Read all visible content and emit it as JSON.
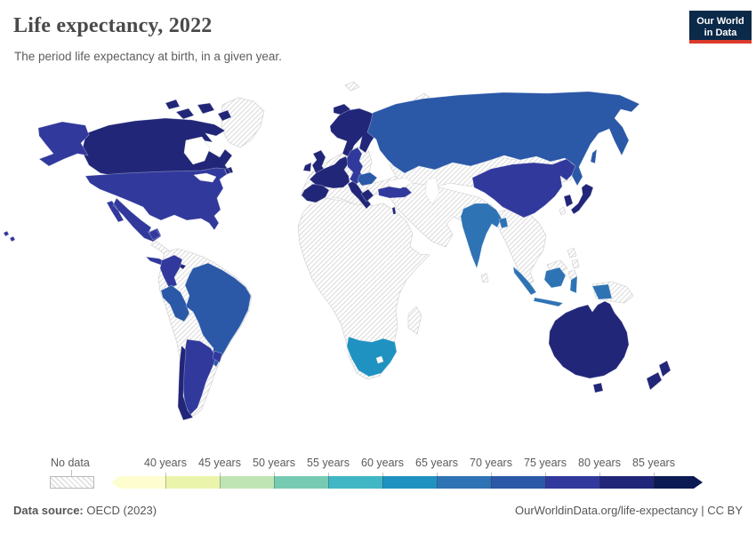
{
  "header": {
    "title": "Life expectancy, 2022",
    "subtitle": "The period life expectancy at birth, in a given year.",
    "logo_line1": "Our World",
    "logo_line2": "in Data",
    "logo_bg": "#0b2948",
    "logo_red": "#dc3a2b"
  },
  "legend": {
    "no_data_label": "No data",
    "tick_labels": [
      "40 years",
      "45 years",
      "50 years",
      "55 years",
      "60 years",
      "65 years",
      "70 years",
      "75 years",
      "80 years",
      "85 years"
    ],
    "bins": [
      {
        "range": "<40",
        "color": "#fdfdd0"
      },
      {
        "range": "40-45",
        "color": "#eaf5ab"
      },
      {
        "range": "45-50",
        "color": "#bfe5b4"
      },
      {
        "range": "50-55",
        "color": "#76cab2"
      },
      {
        "range": "55-60",
        "color": "#41b6c4"
      },
      {
        "range": "60-65",
        "color": "#2092c2"
      },
      {
        "range": "65-70",
        "color": "#2e73b4"
      },
      {
        "range": "70-75",
        "color": "#2b58a7"
      },
      {
        "range": "75-80",
        "color": "#31399c"
      },
      {
        "range": "80-85",
        "color": "#212678"
      },
      {
        "range": ">85",
        "color": "#0b1a52"
      }
    ]
  },
  "footer": {
    "source_label": "Data source:",
    "source_value": " OECD (2023)",
    "credit": "OurWorldinData.org/life-expectancy | CC BY"
  },
  "map": {
    "regions": {
      "canada": "80-85",
      "united_states": "75-80",
      "mexico": "75-80",
      "cuba": "75-80",
      "costa_rica_panama": "80-85",
      "colombia": "75-80",
      "peru": "70-75",
      "brazil": "70-75",
      "argentina": "75-80",
      "uruguay": "75-80",
      "chile": "80-85",
      "iceland": "80-85",
      "united_kingdom": "80-85",
      "ireland": "80-85",
      "scandinavia": "80-85",
      "western_europe": "80-85",
      "iberia": "80-85",
      "italy": "80-85",
      "greece": "80-85",
      "central_europe": "75-80",
      "romania_bulgaria": "70-75",
      "turkey": "75-80",
      "israel": "80-85",
      "russia": "70-75",
      "china": "75-80",
      "india": "65-70",
      "bangladesh": "65-70",
      "south_korea": "80-85",
      "japan": "80-85",
      "indonesia": "65-70",
      "australia": "80-85",
      "new_zealand": "80-85",
      "south_africa": "60-65"
    }
  },
  "chart_data": {
    "type": "choropleth-map",
    "title": "Life expectancy, 2022",
    "subtitle": "The period life expectancy at birth, in a given year.",
    "unit": "years",
    "year": 2022,
    "source": "OECD (2023)",
    "bin_edges": [
      40,
      45,
      50,
      55,
      60,
      65,
      70,
      75,
      80,
      85
    ],
    "countries": [
      {
        "name": "Canada",
        "bin": "80-85"
      },
      {
        "name": "United States",
        "bin": "75-80"
      },
      {
        "name": "Mexico",
        "bin": "75-80"
      },
      {
        "name": "Cuba",
        "bin": "75-80"
      },
      {
        "name": "Costa Rica",
        "bin": "80-85"
      },
      {
        "name": "Colombia",
        "bin": "75-80"
      },
      {
        "name": "Peru",
        "bin": "70-75"
      },
      {
        "name": "Brazil",
        "bin": "70-75"
      },
      {
        "name": "Argentina",
        "bin": "75-80"
      },
      {
        "name": "Uruguay",
        "bin": "75-80"
      },
      {
        "name": "Chile",
        "bin": "80-85"
      },
      {
        "name": "Iceland",
        "bin": "80-85"
      },
      {
        "name": "United Kingdom",
        "bin": "80-85"
      },
      {
        "name": "Ireland",
        "bin": "80-85"
      },
      {
        "name": "Norway",
        "bin": "80-85"
      },
      {
        "name": "Sweden",
        "bin": "80-85"
      },
      {
        "name": "Finland",
        "bin": "80-85"
      },
      {
        "name": "Denmark",
        "bin": "80-85"
      },
      {
        "name": "Germany",
        "bin": "80-85"
      },
      {
        "name": "France",
        "bin": "80-85"
      },
      {
        "name": "Spain",
        "bin": "80-85"
      },
      {
        "name": "Portugal",
        "bin": "80-85"
      },
      {
        "name": "Italy",
        "bin": "80-85"
      },
      {
        "name": "Switzerland",
        "bin": "80-85"
      },
      {
        "name": "Austria",
        "bin": "80-85"
      },
      {
        "name": "Greece",
        "bin": "80-85"
      },
      {
        "name": "Poland",
        "bin": "75-80"
      },
      {
        "name": "Czechia",
        "bin": "75-80"
      },
      {
        "name": "Slovakia",
        "bin": "75-80"
      },
      {
        "name": "Hungary",
        "bin": "75-80"
      },
      {
        "name": "Estonia",
        "bin": "75-80"
      },
      {
        "name": "Latvia",
        "bin": "75-80"
      },
      {
        "name": "Lithuania",
        "bin": "75-80"
      },
      {
        "name": "Croatia",
        "bin": "75-80"
      },
      {
        "name": "Romania",
        "bin": "70-75"
      },
      {
        "name": "Bulgaria",
        "bin": "70-75"
      },
      {
        "name": "Russia",
        "bin": "70-75"
      },
      {
        "name": "Turkey",
        "bin": "75-80"
      },
      {
        "name": "Israel",
        "bin": "80-85"
      },
      {
        "name": "India",
        "bin": "65-70"
      },
      {
        "name": "Bangladesh",
        "bin": "65-70"
      },
      {
        "name": "China",
        "bin": "75-80"
      },
      {
        "name": "South Korea",
        "bin": "80-85"
      },
      {
        "name": "Japan",
        "bin": "80-85"
      },
      {
        "name": "Indonesia",
        "bin": "65-70"
      },
      {
        "name": "Australia",
        "bin": "80-85"
      },
      {
        "name": "New Zealand",
        "bin": "80-85"
      },
      {
        "name": "South Africa",
        "bin": "60-65"
      }
    ],
    "no_data": [
      "Greenland",
      "Ukraine",
      "Belarus",
      "Kazakhstan",
      "Central Asia",
      "Mongolia",
      "Middle East",
      "Most of Africa",
      "Madagascar",
      "Venezuela",
      "Ecuador",
      "Bolivia",
      "Paraguay",
      "Central America (parts)",
      "Caribbean (most)",
      "Myanmar",
      "Thailand",
      "Vietnam",
      "Cambodia",
      "Laos",
      "Malaysia",
      "Philippines",
      "Papua New Guinea",
      "Taiwan",
      "Sri Lanka"
    ]
  }
}
